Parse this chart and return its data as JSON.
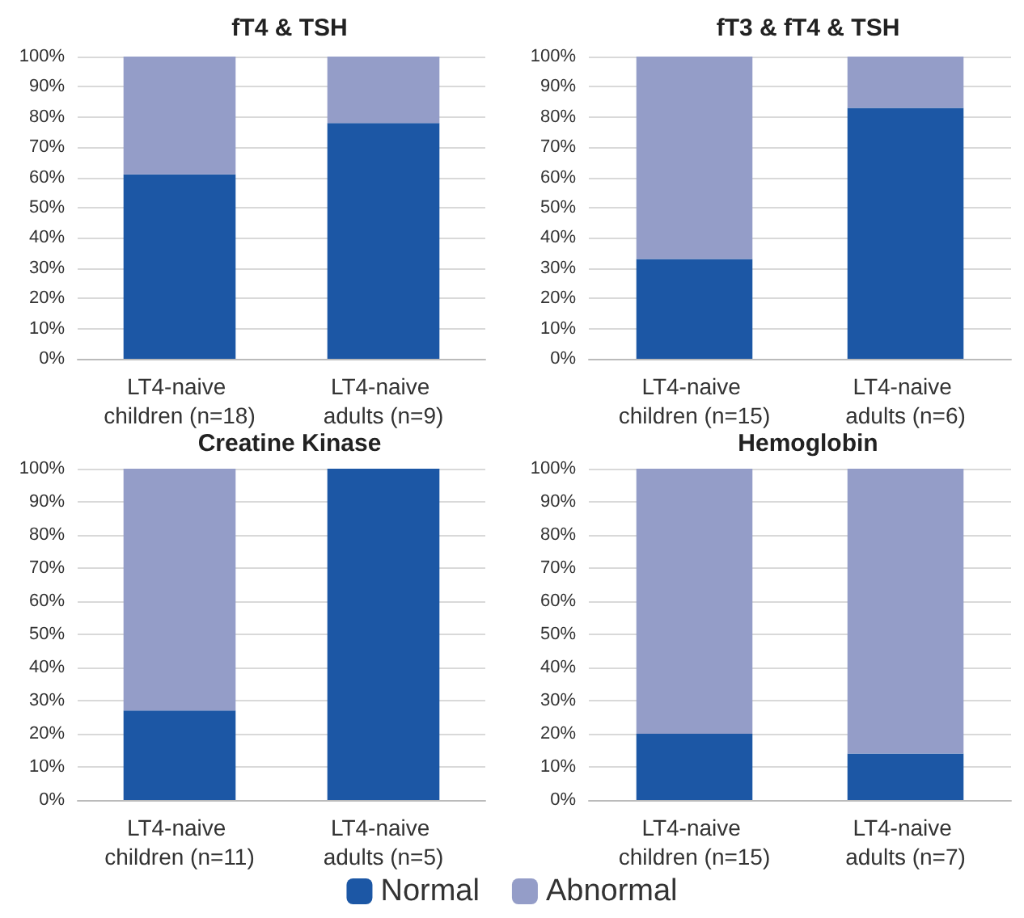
{
  "chart_data": [
    {
      "type": "bar",
      "title": "fT4 & TSH",
      "categories": [
        "LT4-naive children (n=18)",
        "LT4-naive adults (n=9)"
      ],
      "stacked": true,
      "ylim": [
        0,
        100
      ],
      "yticks": [
        {
          "value": 0,
          "label": "0%"
        },
        {
          "value": 10,
          "label": "10%"
        },
        {
          "value": 20,
          "label": "20%"
        },
        {
          "value": 30,
          "label": "30%"
        },
        {
          "value": 40,
          "label": "40%"
        },
        {
          "value": 50,
          "label": "50%"
        },
        {
          "value": 60,
          "label": "60%"
        },
        {
          "value": 70,
          "label": "70%"
        },
        {
          "value": 80,
          "label": "80%"
        },
        {
          "value": 90,
          "label": "90%"
        },
        {
          "value": 100,
          "label": "100%"
        }
      ],
      "grid": "y",
      "series": [
        {
          "color": "#1c57a5",
          "values": [
            61,
            78
          ]
        },
        {
          "color": "#949dc8",
          "values": [
            39,
            22
          ]
        }
      ]
    },
    {
      "type": "bar",
      "title": "fT3 & fT4 & TSH",
      "categories": [
        "LT4-naive children (n=15)",
        "LT4-naive adults (n=6)"
      ],
      "stacked": true,
      "ylim": [
        0,
        100
      ],
      "yticks": [
        {
          "value": 0,
          "label": "0%"
        },
        {
          "value": 10,
          "label": "10%"
        },
        {
          "value": 20,
          "label": "20%"
        },
        {
          "value": 30,
          "label": "30%"
        },
        {
          "value": 40,
          "label": "40%"
        },
        {
          "value": 50,
          "label": "50%"
        },
        {
          "value": 60,
          "label": "60%"
        },
        {
          "value": 70,
          "label": "70%"
        },
        {
          "value": 80,
          "label": "80%"
        },
        {
          "value": 90,
          "label": "90%"
        },
        {
          "value": 100,
          "label": "100%"
        }
      ],
      "grid": "y",
      "series": [
        {
          "color": "#1c57a5",
          "values": [
            33,
            83
          ]
        },
        {
          "color": "#949dc8",
          "values": [
            67,
            17
          ]
        }
      ]
    },
    {
      "type": "bar",
      "title": "Creatine Kinase",
      "categories": [
        "LT4-naive children (n=11)",
        "LT4-naive adults (n=5)"
      ],
      "stacked": true,
      "ylim": [
        0,
        100
      ],
      "yticks": [
        {
          "value": 0,
          "label": "0%"
        },
        {
          "value": 10,
          "label": "10%"
        },
        {
          "value": 20,
          "label": "20%"
        },
        {
          "value": 30,
          "label": "30%"
        },
        {
          "value": 40,
          "label": "40%"
        },
        {
          "value": 50,
          "label": "50%"
        },
        {
          "value": 60,
          "label": "60%"
        },
        {
          "value": 70,
          "label": "70%"
        },
        {
          "value": 80,
          "label": "80%"
        },
        {
          "value": 90,
          "label": "90%"
        },
        {
          "value": 100,
          "label": "100%"
        }
      ],
      "grid": "y",
      "series": [
        {
          "color": "#1c57a5",
          "values": [
            27,
            100
          ]
        },
        {
          "color": "#949dc8",
          "values": [
            73,
            0
          ]
        }
      ]
    },
    {
      "type": "bar",
      "title": "Hemoglobin",
      "categories": [
        "LT4-naive children (n=15)",
        "LT4-naive adults (n=7)"
      ],
      "stacked": true,
      "ylim": [
        0,
        100
      ],
      "yticks": [
        {
          "value": 0,
          "label": "0%"
        },
        {
          "value": 10,
          "label": "10%"
        },
        {
          "value": 20,
          "label": "20%"
        },
        {
          "value": 30,
          "label": "30%"
        },
        {
          "value": 40,
          "label": "40%"
        },
        {
          "value": 50,
          "label": "50%"
        },
        {
          "value": 60,
          "label": "60%"
        },
        {
          "value": 70,
          "label": "70%"
        },
        {
          "value": 80,
          "label": "80%"
        },
        {
          "value": 90,
          "label": "90%"
        },
        {
          "value": 100,
          "label": "100%"
        }
      ],
      "grid": "y",
      "legend": "bottom",
      "series": [
        {
          "name": "Normal",
          "color": "#1c57a5",
          "values": [
            20,
            14
          ]
        },
        {
          "name": "Abnormal",
          "color": "#949dc8",
          "values": [
            80,
            86
          ]
        }
      ]
    }
  ]
}
